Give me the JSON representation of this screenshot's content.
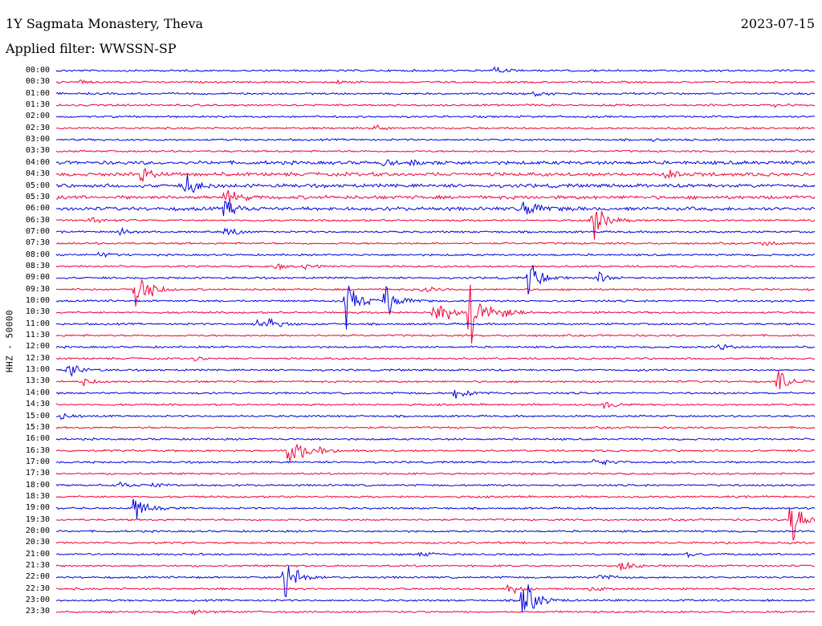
{
  "header": {
    "station": "1Y Sagmata Monastery, Theva",
    "date": "2023-07-15",
    "filter": "Applied filter: WWSSN-SP"
  },
  "axis": {
    "ylabel": "HHZ - 50000"
  },
  "colors": {
    "blue": "#0000dd",
    "red": "#f0003a",
    "background": "#ffffff"
  },
  "traces": [
    {
      "label": "00:00"
    },
    {
      "label": "00:30"
    },
    {
      "label": "01:00"
    },
    {
      "label": "01:30"
    },
    {
      "label": "02:00"
    },
    {
      "label": "02:30"
    },
    {
      "label": "03:00"
    },
    {
      "label": "03:30"
    },
    {
      "label": "04:00"
    },
    {
      "label": "04:30"
    },
    {
      "label": "05:00"
    },
    {
      "label": "05:30"
    },
    {
      "label": "06:00"
    },
    {
      "label": "06:30"
    },
    {
      "label": "07:00"
    },
    {
      "label": "07:30"
    },
    {
      "label": "08:00"
    },
    {
      "label": "08:30"
    },
    {
      "label": "09:00"
    },
    {
      "label": "09:30"
    },
    {
      "label": "10:00"
    },
    {
      "label": "10:30"
    },
    {
      "label": "11:00"
    },
    {
      "label": "11:30"
    },
    {
      "label": "12:00"
    },
    {
      "label": "12:30"
    },
    {
      "label": "13:00"
    },
    {
      "label": "13:30"
    },
    {
      "label": "14:00"
    },
    {
      "label": "14:30"
    },
    {
      "label": "15:00"
    },
    {
      "label": "15:30"
    },
    {
      "label": "16:00"
    },
    {
      "label": "16:30"
    },
    {
      "label": "17:00"
    },
    {
      "label": "17:30"
    },
    {
      "label": "18:00"
    },
    {
      "label": "18:30"
    },
    {
      "label": "19:00"
    },
    {
      "label": "19:30"
    },
    {
      "label": "20:00"
    },
    {
      "label": "20:30"
    },
    {
      "label": "21:00"
    },
    {
      "label": "21:30"
    },
    {
      "label": "22:00"
    },
    {
      "label": "22:30"
    },
    {
      "label": "23:00"
    },
    {
      "label": "23:30"
    }
  ]
}
